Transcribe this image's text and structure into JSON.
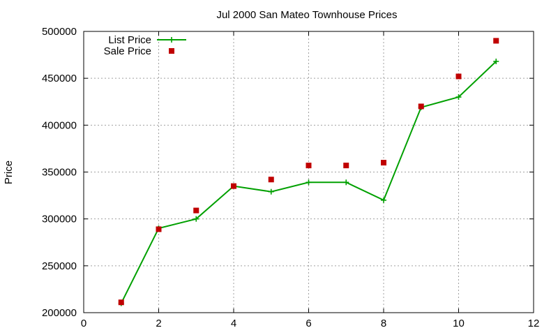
{
  "chart_data": {
    "type": "line",
    "title": "Jul 2000 San Mateo Townhouse Prices",
    "xlabel": "",
    "ylabel": "Price",
    "xlim": [
      0,
      12
    ],
    "ylim": [
      200000,
      500000
    ],
    "xticks": [
      0,
      2,
      4,
      6,
      8,
      10,
      12
    ],
    "yticks": [
      200000,
      250000,
      300000,
      350000,
      400000,
      450000,
      500000
    ],
    "grid": true,
    "legend_position": "top-left",
    "series": [
      {
        "name": "List Price",
        "style": "line-with-plus-markers",
        "color": "#00a000",
        "x": [
          1,
          2,
          3,
          4,
          5,
          6,
          7,
          8,
          9,
          10,
          11
        ],
        "y": [
          210000,
          290000,
          300000,
          335000,
          329000,
          339000,
          339000,
          320000,
          419000,
          430000,
          468000
        ]
      },
      {
        "name": "Sale Price",
        "style": "square-markers",
        "color": "#c00000",
        "x": [
          1,
          2,
          3,
          4,
          5,
          6,
          7,
          8,
          9,
          10,
          11
        ],
        "y": [
          211000,
          289000,
          309000,
          335000,
          342000,
          357000,
          357000,
          360000,
          420000,
          452000,
          490000
        ]
      }
    ]
  }
}
